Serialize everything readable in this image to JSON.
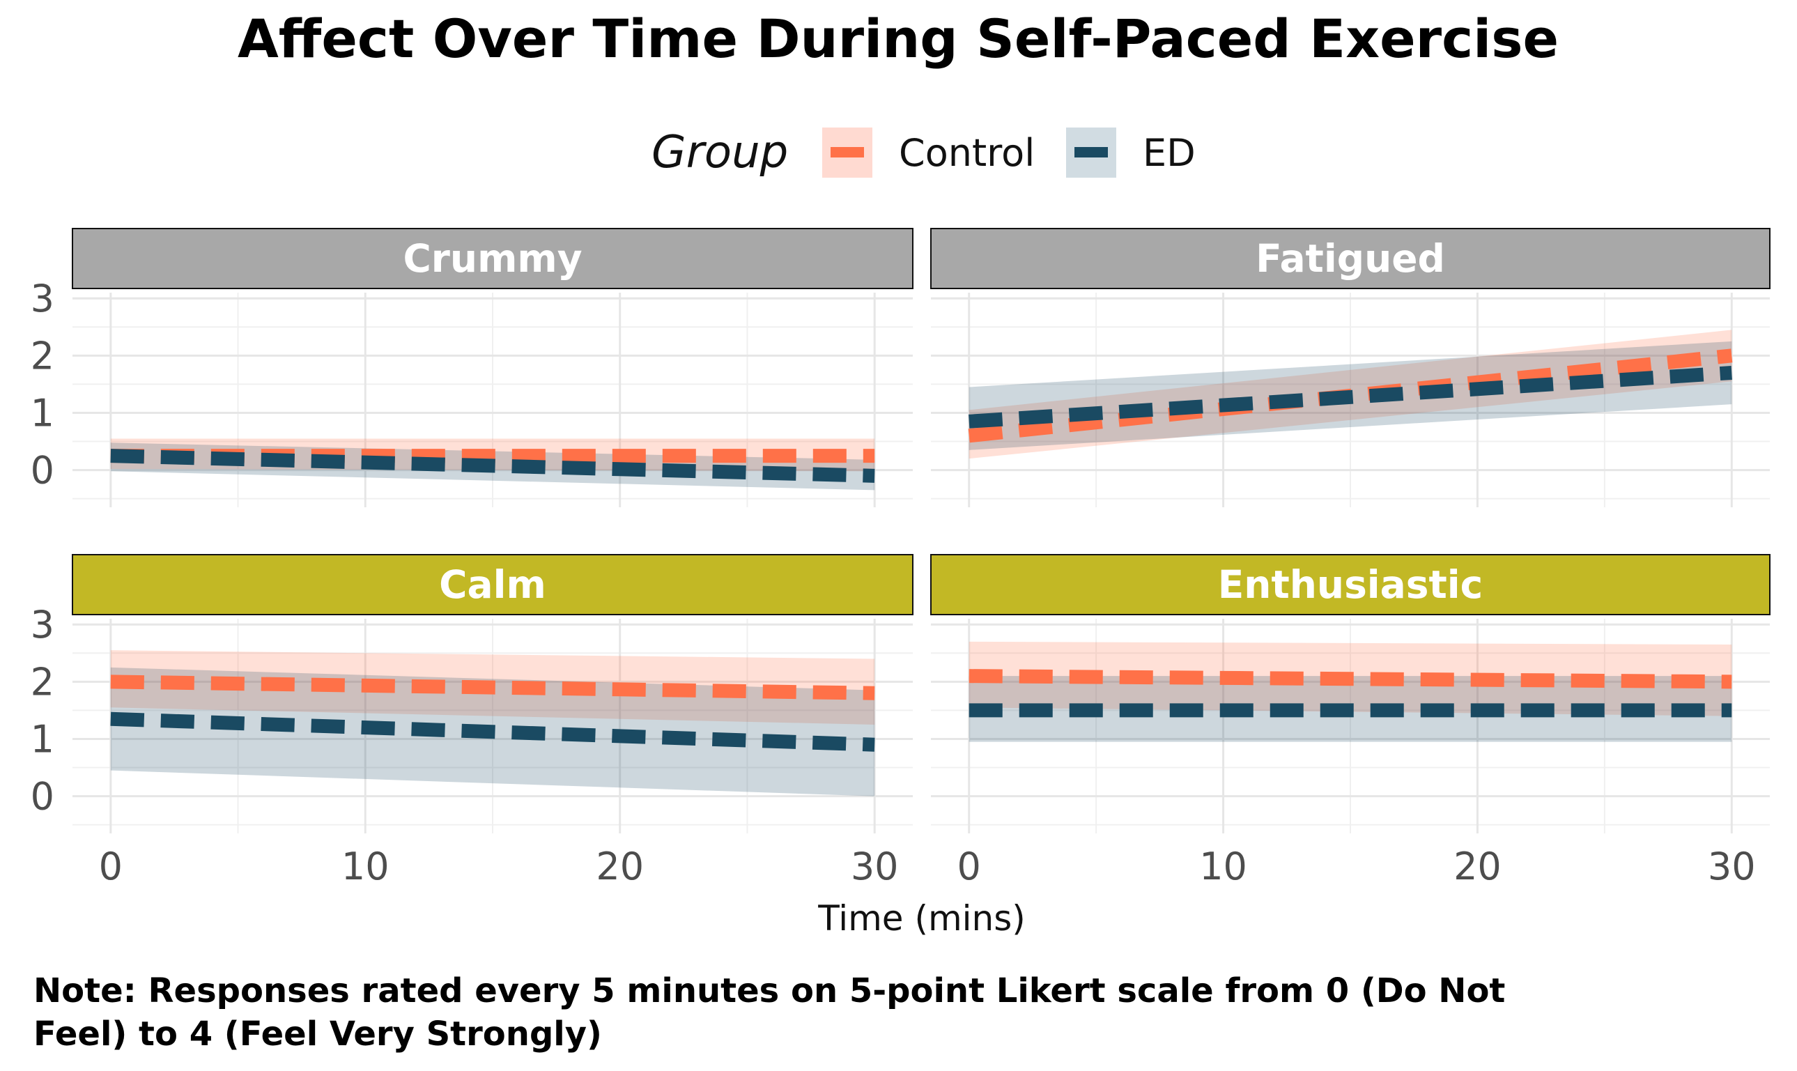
{
  "chart_data": {
    "type": "line",
    "title": "Affect Over Time During Self-Paced Exercise",
    "xlabel": "Time (mins)",
    "ylabel": "",
    "xlim": [
      -1.5,
      31.5
    ],
    "ylim": [
      -0.65,
      3.1
    ],
    "x_ticks": [
      0,
      10,
      20,
      30
    ],
    "y_ticks": [
      0,
      1,
      2,
      3
    ],
    "grid": true,
    "legend": {
      "title": "Group",
      "position": "top",
      "entries": [
        {
          "name": "Control",
          "color": "#FF7148",
          "fill": "#FFDAD1"
        },
        {
          "name": "ED",
          "color": "#1A4A62",
          "fill": "#D1DCE2"
        }
      ]
    },
    "strip_colors": {
      "negative": "#A8A8A8",
      "positive": "#C2B825"
    },
    "note": [
      "Note: Responses rated every 5 minutes on 5-point Likert scale from 0 (Do Not",
      "Feel) to 4 (Feel Very Strongly)"
    ],
    "panels": [
      {
        "label": "Crummy",
        "strip": "negative",
        "series": [
          {
            "name": "Control",
            "x": [
              0,
              30
            ],
            "y": [
              0.25,
              0.25
            ],
            "lower": [
              0.02,
              -0.02
            ],
            "upper": [
              0.55,
              0.55
            ]
          },
          {
            "name": "ED",
            "x": [
              0,
              30
            ],
            "y": [
              0.25,
              -0.1
            ],
            "lower": [
              -0.02,
              -0.35
            ],
            "upper": [
              0.48,
              0.18
            ]
          }
        ]
      },
      {
        "label": "Fatigued",
        "strip": "negative",
        "series": [
          {
            "name": "Control",
            "x": [
              0,
              30
            ],
            "y": [
              0.6,
              2.0
            ],
            "lower": [
              0.2,
              1.55
            ],
            "upper": [
              1.05,
              2.45
            ]
          },
          {
            "name": "ED",
            "x": [
              0,
              30
            ],
            "y": [
              0.85,
              1.7
            ],
            "lower": [
              0.35,
              1.15
            ],
            "upper": [
              1.45,
              2.25
            ]
          }
        ]
      },
      {
        "label": "Calm",
        "strip": "positive",
        "series": [
          {
            "name": "Control",
            "x": [
              0,
              30
            ],
            "y": [
              2.0,
              1.8
            ],
            "lower": [
              1.55,
              1.25
            ],
            "upper": [
              2.55,
              2.4
            ]
          },
          {
            "name": "ED",
            "x": [
              0,
              30
            ],
            "y": [
              1.35,
              0.9
            ],
            "lower": [
              0.45,
              0.0
            ],
            "upper": [
              2.25,
              1.85
            ]
          }
        ]
      },
      {
        "label": "Enthusiastic",
        "strip": "positive",
        "series": [
          {
            "name": "Control",
            "x": [
              0,
              30
            ],
            "y": [
              2.1,
              2.0
            ],
            "lower": [
              1.55,
              1.4
            ],
            "upper": [
              2.7,
              2.65
            ]
          },
          {
            "name": "ED",
            "x": [
              0,
              30
            ],
            "y": [
              1.5,
              1.5
            ],
            "lower": [
              0.95,
              0.95
            ],
            "upper": [
              2.1,
              2.1
            ]
          }
        ]
      }
    ]
  }
}
